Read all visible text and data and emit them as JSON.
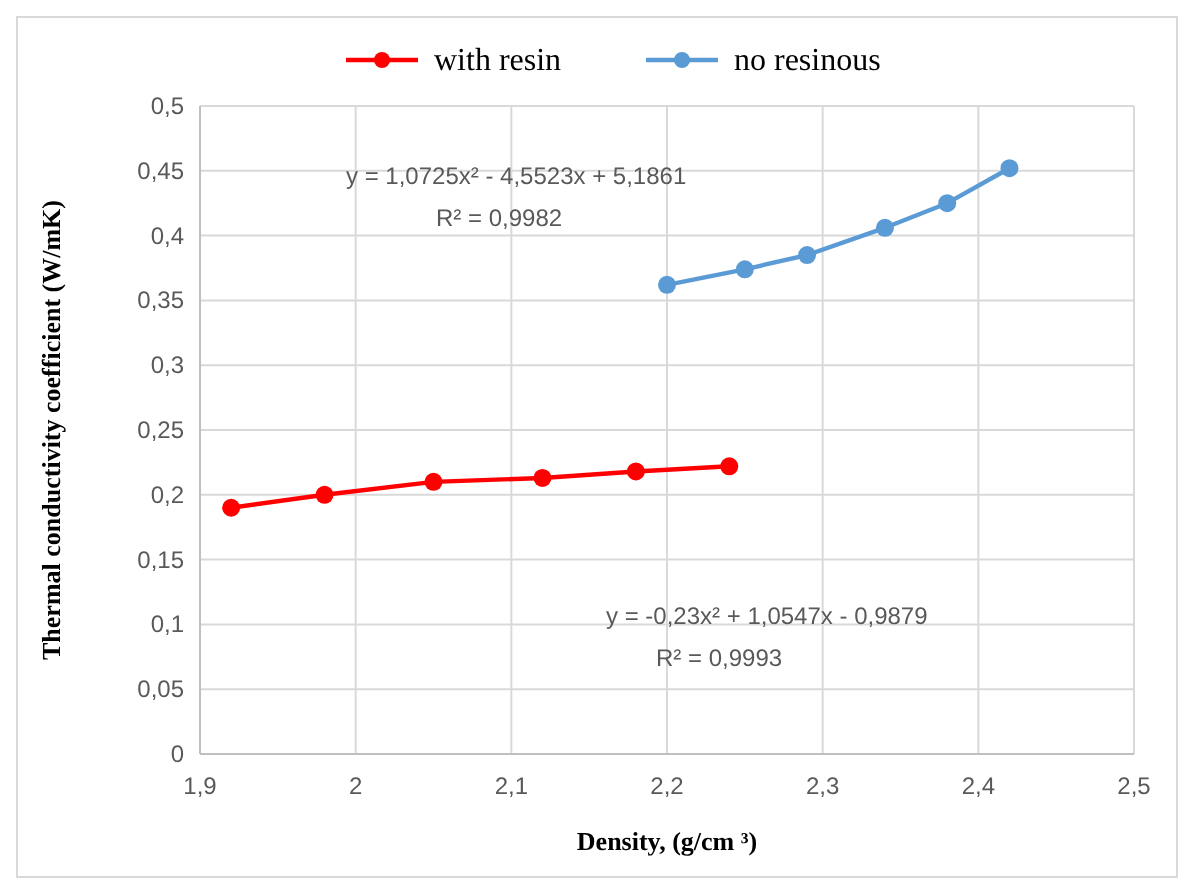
{
  "chart_data": {
    "type": "line",
    "xlabel": "Density, (g/cm ³)",
    "ylabel": "Thermal conductivity coefficient (W/mK)",
    "xlim": [
      1.9,
      2.5
    ],
    "xticks": [
      {
        "value": 1.9,
        "label": "1,9"
      },
      2,
      {
        "value": 2.1,
        "label": "2,1"
      },
      {
        "value": 2.2,
        "label": "2,2"
      },
      {
        "value": 2.3,
        "label": "2,3"
      },
      {
        "value": 2.4,
        "label": "2,4"
      },
      {
        "value": 2.5,
        "label": "2,5"
      }
    ],
    "ylim": [
      0,
      0.5
    ],
    "yticks": [
      0,
      {
        "value": 0.05,
        "label": "0,05"
      },
      {
        "value": 0.1,
        "label": "0,1"
      },
      {
        "value": 0.15,
        "label": "0,15"
      },
      {
        "value": 0.2,
        "label": "0,2"
      },
      {
        "value": 0.25,
        "label": "0,25"
      },
      {
        "value": 0.3,
        "label": "0,3"
      },
      {
        "value": 0.35,
        "label": "0,35"
      },
      {
        "value": 0.4,
        "label": "0,4"
      },
      {
        "value": 0.45,
        "label": "0,45"
      },
      {
        "value": 0.5,
        "label": "0,5"
      }
    ],
    "grid": true,
    "legend": "top",
    "marker": "circle",
    "line_style": "solid",
    "series": [
      {
        "name": "with resin",
        "color": "#ff0000",
        "x": [
          1.92,
          1.98,
          2.05,
          2.12,
          2.18,
          2.24
        ],
        "values": [
          0.19,
          0.2,
          0.21,
          0.213,
          0.218,
          0.222
        ]
      },
      {
        "name": "no resinous",
        "color": "#5b9bd5",
        "x": [
          2.2,
          2.25,
          2.29,
          2.34,
          2.38,
          2.42
        ],
        "values": [
          0.362,
          0.374,
          0.385,
          0.406,
          0.425,
          0.452
        ]
      }
    ],
    "annotations": [
      "y = 1,0725x² - 4,5523x + 5,1861",
      "R² = 0,9982",
      "y = -0,23x² + 1,0547x - 0,9879",
      "R² = 0,9993"
    ]
  }
}
